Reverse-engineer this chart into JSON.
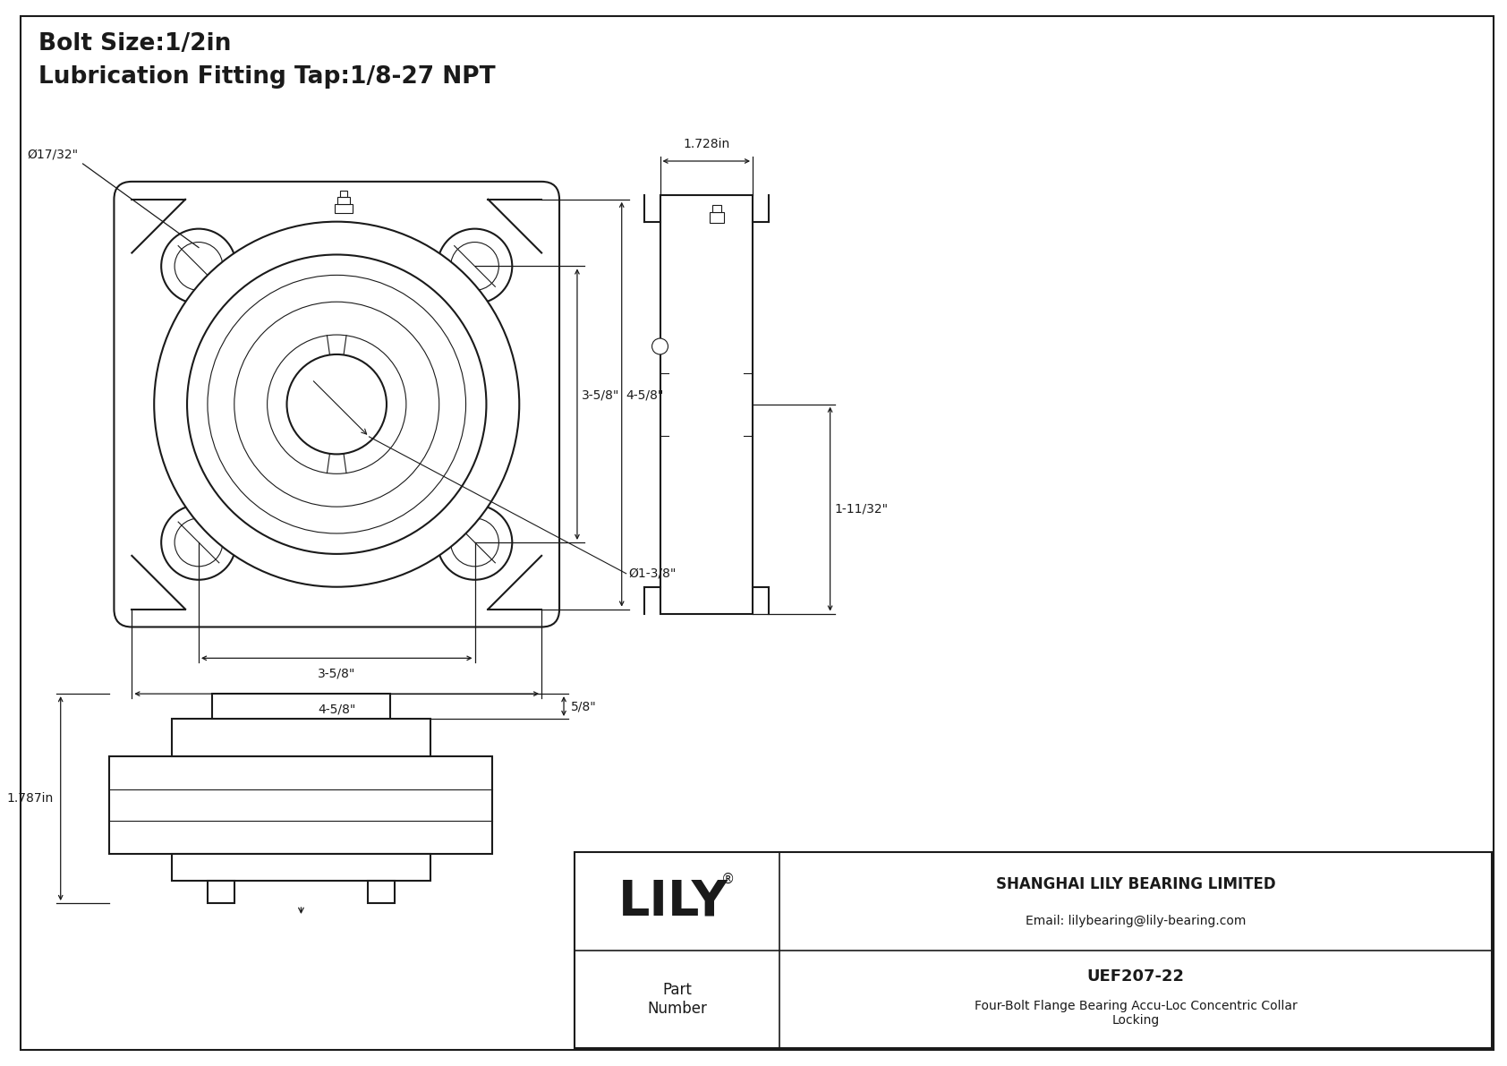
{
  "title_line1": "Bolt Size:1/2in",
  "title_line2": "Lubrication Fitting Tap:1/8-27 NPT",
  "bg_color": "#ffffff",
  "line_color": "#1a1a1a",
  "company": "SHANGHAI LILY BEARING LIMITED",
  "email": "Email: lilybearing@lily-bearing.com",
  "part_label": "Part\nNumber",
  "part_number": "UEF207-22",
  "part_desc_1": "Four-Bolt Flange Bearing Accu-Loc Concentric Collar",
  "part_desc_2": "Locking",
  "lily_text": "LILY",
  "dim_bolt_hole": "Ø17/32\"",
  "dim_bolt_circle": "3-5/8\"",
  "dim_flange_width": "4-5/8\"",
  "dim_height_inner": "3-5/8\"",
  "dim_height_outer": "4-5/8\"",
  "dim_bore": "Ø1-3/8\"",
  "dim_side_width": "1.728in",
  "dim_side_length": "1-11/32\"",
  "dim_front_height": "1.787in",
  "dim_top_height": "5/8\""
}
